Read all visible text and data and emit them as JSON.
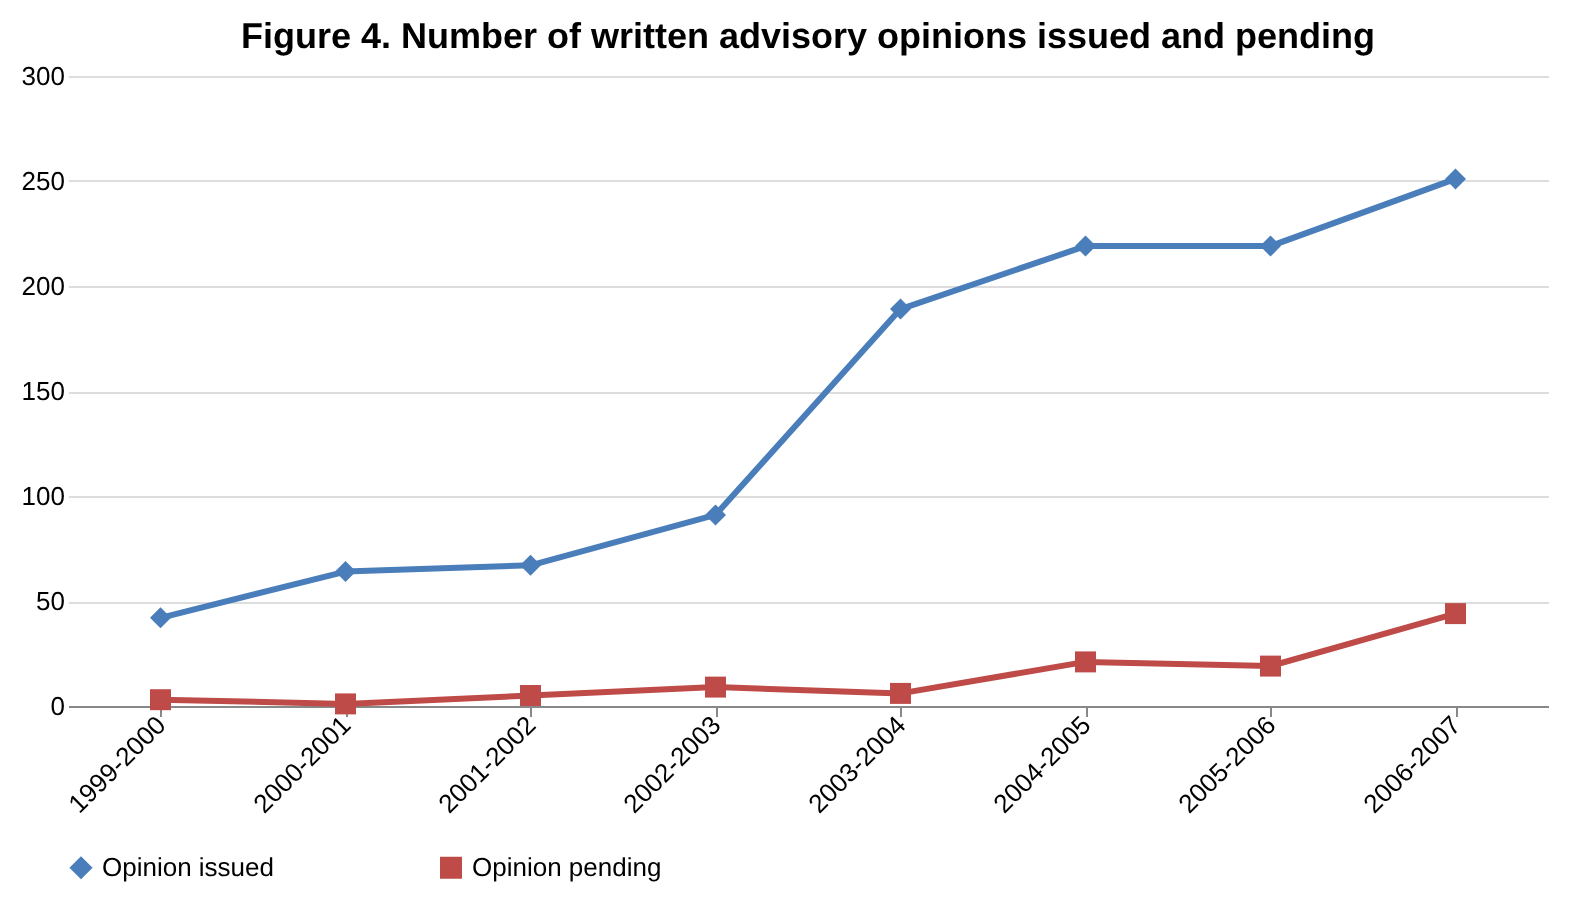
{
  "chart_data": {
    "type": "line",
    "title": "Figure 4. Number of  written advisory opinions issued and pending",
    "categories": [
      "1999-2000",
      "2000-2001",
      "2001-2002",
      "2002-2003",
      "2003-2004",
      "2004-2005",
      "2005-2006",
      "2006-2007"
    ],
    "series": [
      {
        "name": "Opinion issued",
        "color": "#4a7ebb",
        "marker": "diamond",
        "values": [
          42,
          64,
          67,
          91,
          189,
          219,
          219,
          251
        ]
      },
      {
        "name": "Opinion pending",
        "color": "#be4b48",
        "marker": "square",
        "values": [
          3,
          1,
          5,
          9,
          6,
          21,
          19,
          44
        ]
      }
    ],
    "ylim": [
      0,
      300
    ],
    "yticks": [
      0,
      50,
      100,
      150,
      200,
      250,
      300
    ],
    "grid": "y",
    "legend": "bottom",
    "line_style": "solid"
  }
}
